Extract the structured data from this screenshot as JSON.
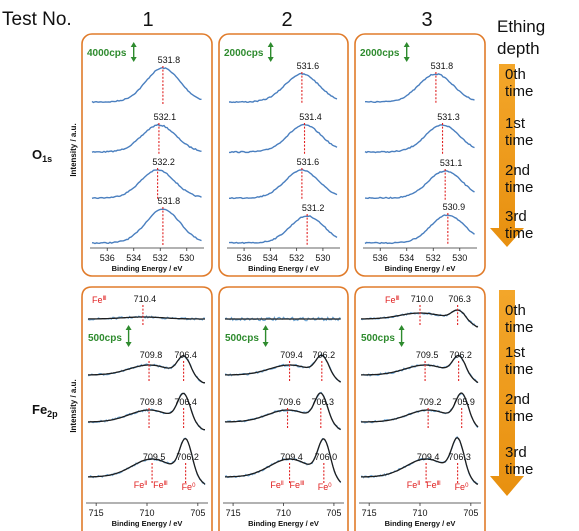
{
  "header": {
    "test_label": "Test No.",
    "test_numbers": [
      "1",
      "2",
      "3"
    ],
    "depth_label_line1": "Ething",
    "depth_label_line2": "depth"
  },
  "times": [
    "0th time",
    "1st time",
    "2nd time",
    "3rd time"
  ],
  "chart_data": [
    {
      "type": "line",
      "row_label": "O",
      "row_label_sub": "1s",
      "ylabel": "Intensity / a.u.",
      "xlabel": "Binding Energy / eV",
      "x_ticks": [
        536,
        534,
        532,
        530
      ],
      "xlim": [
        537.3,
        528.7
      ],
      "panels": [
        {
          "test": "1",
          "scale": "4000cps",
          "peaks": [
            531.8,
            532.1,
            532.2,
            531.8
          ]
        },
        {
          "test": "2",
          "scale": "2000cps",
          "peaks": [
            531.6,
            531.4,
            531.6,
            531.2
          ]
        },
        {
          "test": "3",
          "scale": "2000cps",
          "peaks": [
            531.8,
            531.3,
            531.1,
            530.9
          ]
        }
      ]
    },
    {
      "type": "line",
      "row_label": "Fe",
      "row_label_sub": "2p",
      "ylabel": "Intensity / a.u.",
      "xlabel": "Binding Energy / eV",
      "x_ticks": [
        715,
        710,
        705
      ],
      "xlim": [
        716,
        704
      ],
      "panels": [
        {
          "test": "1",
          "scale": "500cps",
          "peaks": [
            [
              "710.4"
            ],
            [
              "709.8",
              "706.4"
            ],
            [
              "709.8",
              "706.4"
            ],
            [
              "709.5",
              "706.2"
            ]
          ],
          "fe_top": "Fe",
          "fe_top_sup": "Ⅲ",
          "fe_bottom_left": "Fe",
          "fe_bottom_left_sup": "Ⅱ",
          "fe_bottom_mid": "Fe",
          "fe_bottom_mid_sup": "Ⅲ",
          "fe_bottom_right": "Fe",
          "fe_bottom_right_sup": "0"
        },
        {
          "test": "2",
          "scale": "500cps",
          "peaks": [
            [],
            [
              "709.4",
              "706.2"
            ],
            [
              "709.6",
              "706.3"
            ],
            [
              "709.4",
              "706.0"
            ]
          ],
          "fe_bottom_left": "Fe",
          "fe_bottom_left_sup": "Ⅱ",
          "fe_bottom_mid": "Fe",
          "fe_bottom_mid_sup": "Ⅲ",
          "fe_bottom_right": "Fe",
          "fe_bottom_right_sup": "0"
        },
        {
          "test": "3",
          "scale": "500cps",
          "peaks": [
            [
              "710.0",
              "706.3"
            ],
            [
              "709.5",
              "706.2"
            ],
            [
              "709.2",
              "705.9"
            ],
            [
              "709.4",
              "706.3"
            ]
          ],
          "fe_top": "Fe",
          "fe_top_sup": "Ⅲ",
          "fe_bottom_left": "Fe",
          "fe_bottom_left_sup": "Ⅱ",
          "fe_bottom_mid": "Fe",
          "fe_bottom_mid_sup": "Ⅲ",
          "fe_bottom_right": "Fe",
          "fe_bottom_right_sup": "0"
        }
      ]
    }
  ],
  "colors": {
    "panel_border": "#e07b2a",
    "curve": "#4a7fbf",
    "fit": "#1e1e1e",
    "marker": "#e02020",
    "scale_text": "#2e8b2e",
    "arrow": "#f0a020"
  }
}
